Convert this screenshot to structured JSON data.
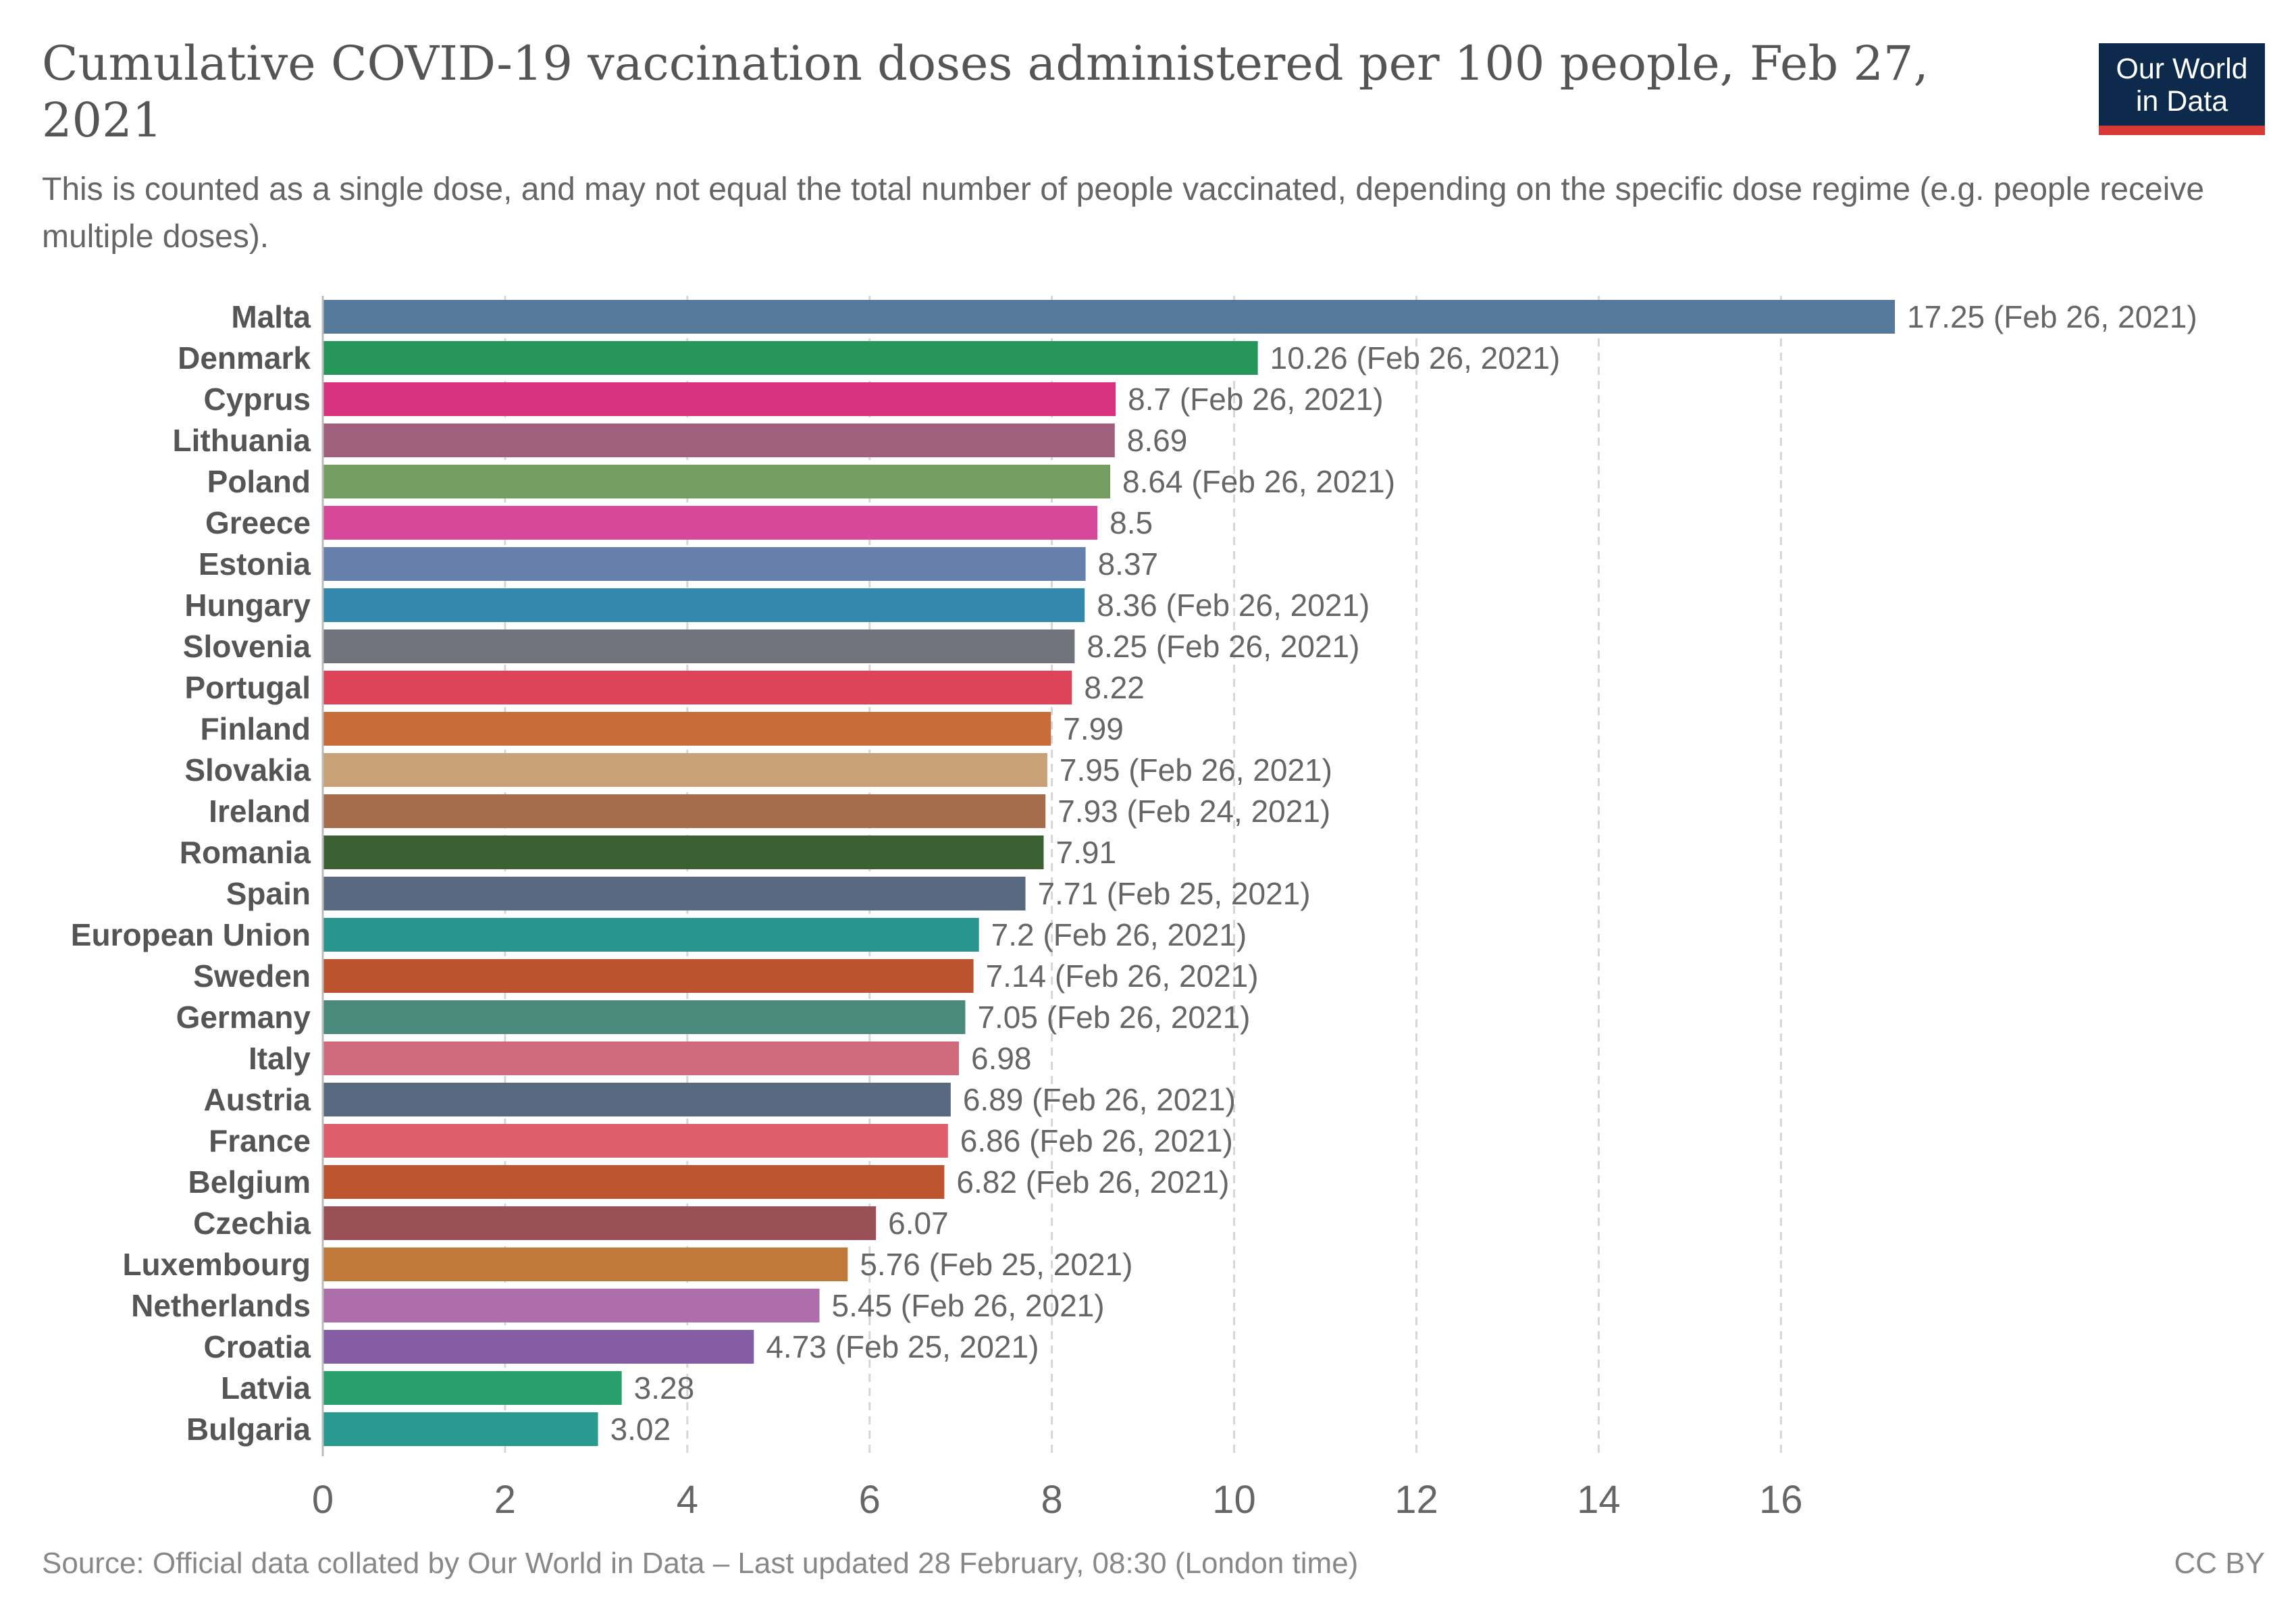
{
  "header": {
    "title": "Cumulative COVID-19 vaccination doses administered per 100 people, Feb 27, 2021",
    "subtitle": "This is counted as a single dose, and may not equal the total number of people vaccinated, depending on the specific dose regime (e.g. people receive multiple doses).",
    "logo_line1": "Our World",
    "logo_line2": "in Data"
  },
  "footer": {
    "source": "Source: Official data collated by Our World in Data – Last updated 28 February, 08:30 (London time)",
    "license": "CC BY"
  },
  "chart_data": {
    "type": "bar",
    "orientation": "horizontal",
    "title": "Cumulative COVID-19 vaccination doses administered per 100 people, Feb 27, 2021",
    "xlim": [
      0,
      17.25
    ],
    "xticks": [
      0,
      2,
      4,
      6,
      8,
      10,
      12,
      14,
      16
    ],
    "grid": "vertical dashed",
    "categories": [
      "Malta",
      "Denmark",
      "Cyprus",
      "Lithuania",
      "Poland",
      "Greece",
      "Estonia",
      "Hungary",
      "Slovenia",
      "Portugal",
      "Finland",
      "Slovakia",
      "Ireland",
      "Romania",
      "Spain",
      "European Union",
      "Sweden",
      "Germany",
      "Italy",
      "Austria",
      "France",
      "Belgium",
      "Czechia",
      "Luxembourg",
      "Netherlands",
      "Croatia",
      "Latvia",
      "Bulgaria"
    ],
    "values": [
      17.25,
      10.26,
      8.7,
      8.69,
      8.64,
      8.5,
      8.37,
      8.36,
      8.25,
      8.22,
      7.99,
      7.95,
      7.93,
      7.91,
      7.71,
      7.2,
      7.14,
      7.05,
      6.98,
      6.89,
      6.86,
      6.82,
      6.07,
      5.76,
      5.45,
      4.73,
      3.28,
      3.02
    ],
    "value_labels": [
      "17.25 (Feb 26, 2021)",
      "10.26 (Feb 26, 2021)",
      "8.7 (Feb 26, 2021)",
      "8.69",
      "8.64 (Feb 26, 2021)",
      "8.5",
      "8.37",
      "8.36 (Feb 26, 2021)",
      "8.25 (Feb 26, 2021)",
      "8.22",
      "7.99",
      "7.95 (Feb 26, 2021)",
      "7.93 (Feb 24, 2021)",
      "7.91",
      "7.71 (Feb 25, 2021)",
      "7.2 (Feb 26, 2021)",
      "7.14 (Feb 26, 2021)",
      "7.05 (Feb 26, 2021)",
      "6.98",
      "6.89 (Feb 26, 2021)",
      "6.86 (Feb 26, 2021)",
      "6.82 (Feb 26, 2021)",
      "6.07",
      "5.76 (Feb 25, 2021)",
      "5.45 (Feb 26, 2021)",
      "4.73 (Feb 25, 2021)",
      "3.28",
      "3.02"
    ],
    "colors": [
      "#54799b",
      "#26965b",
      "#d8317f",
      "#a0617e",
      "#739d61",
      "#d8489a",
      "#6680ac",
      "#3389ab",
      "#71747d",
      "#dc4459",
      "#c86d3a",
      "#c9a176",
      "#a56d4b",
      "#3b6133",
      "#586980",
      "#28958e",
      "#bd5230",
      "#4a8a7c",
      "#cf6a7d",
      "#586980",
      "#df5e6c",
      "#bf5530",
      "#994f56",
      "#bf7a3a",
      "#ae6eab",
      "#855ca6",
      "#28a06e",
      "#2a9a91"
    ]
  }
}
